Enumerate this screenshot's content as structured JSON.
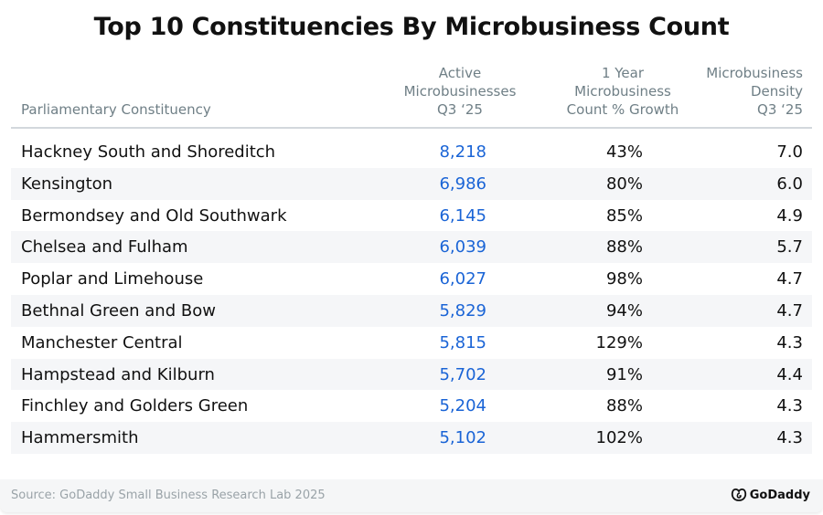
{
  "title": "Top 10 Constituencies By Microbusiness Count",
  "headers": {
    "constituency": "Parliamentary Constituency",
    "active": [
      "Active",
      "Microbusinesses",
      "Q3 ‘25"
    ],
    "growth": [
      "1 Year",
      "Microbusiness",
      "Count % Growth"
    ],
    "density": [
      "Microbusiness",
      "Density",
      "Q3 ‘25"
    ]
  },
  "chart_data": {
    "type": "table",
    "title": "Top 10 Constituencies By Microbusiness Count",
    "columns": [
      "Parliamentary Constituency",
      "Active Microbusinesses Q3 ‘25",
      "1 Year Microbusiness Count % Growth",
      "Microbusiness Density Q3 ‘25"
    ],
    "rows": [
      {
        "name": "Hackney South and Shoreditch",
        "active": "8,218",
        "growth": "43%",
        "density": "7.0"
      },
      {
        "name": "Kensington",
        "active": "6,986",
        "growth": "80%",
        "density": "6.0"
      },
      {
        "name": "Bermondsey and Old Southwark",
        "active": "6,145",
        "growth": "85%",
        "density": "4.9"
      },
      {
        "name": "Chelsea and Fulham",
        "active": "6,039",
        "growth": "88%",
        "density": "5.7"
      },
      {
        "name": "Poplar and Limehouse",
        "active": "6,027",
        "growth": "98%",
        "density": "4.7"
      },
      {
        "name": "Bethnal Green and Bow",
        "active": "5,829",
        "growth": "94%",
        "density": "4.7"
      },
      {
        "name": "Manchester Central",
        "active": "5,815",
        "growth": "129%",
        "density": "4.3"
      },
      {
        "name": "Hampstead and Kilburn",
        "active": "5,702",
        "growth": "91%",
        "density": "4.4"
      },
      {
        "name": "Finchley and Golders Green",
        "active": "5,204",
        "growth": "88%",
        "density": "4.3"
      },
      {
        "name": "Hammersmith",
        "active": "5,102",
        "growth": "102%",
        "density": "4.3"
      }
    ]
  },
  "footer": {
    "source": "Source: GoDaddy Small Business Research Lab 2025",
    "logo_text": "GoDaddy"
  },
  "colors": {
    "accent": "#1a64d6",
    "header_text": "#6f7f86",
    "stripe": "#f5f6f8"
  }
}
